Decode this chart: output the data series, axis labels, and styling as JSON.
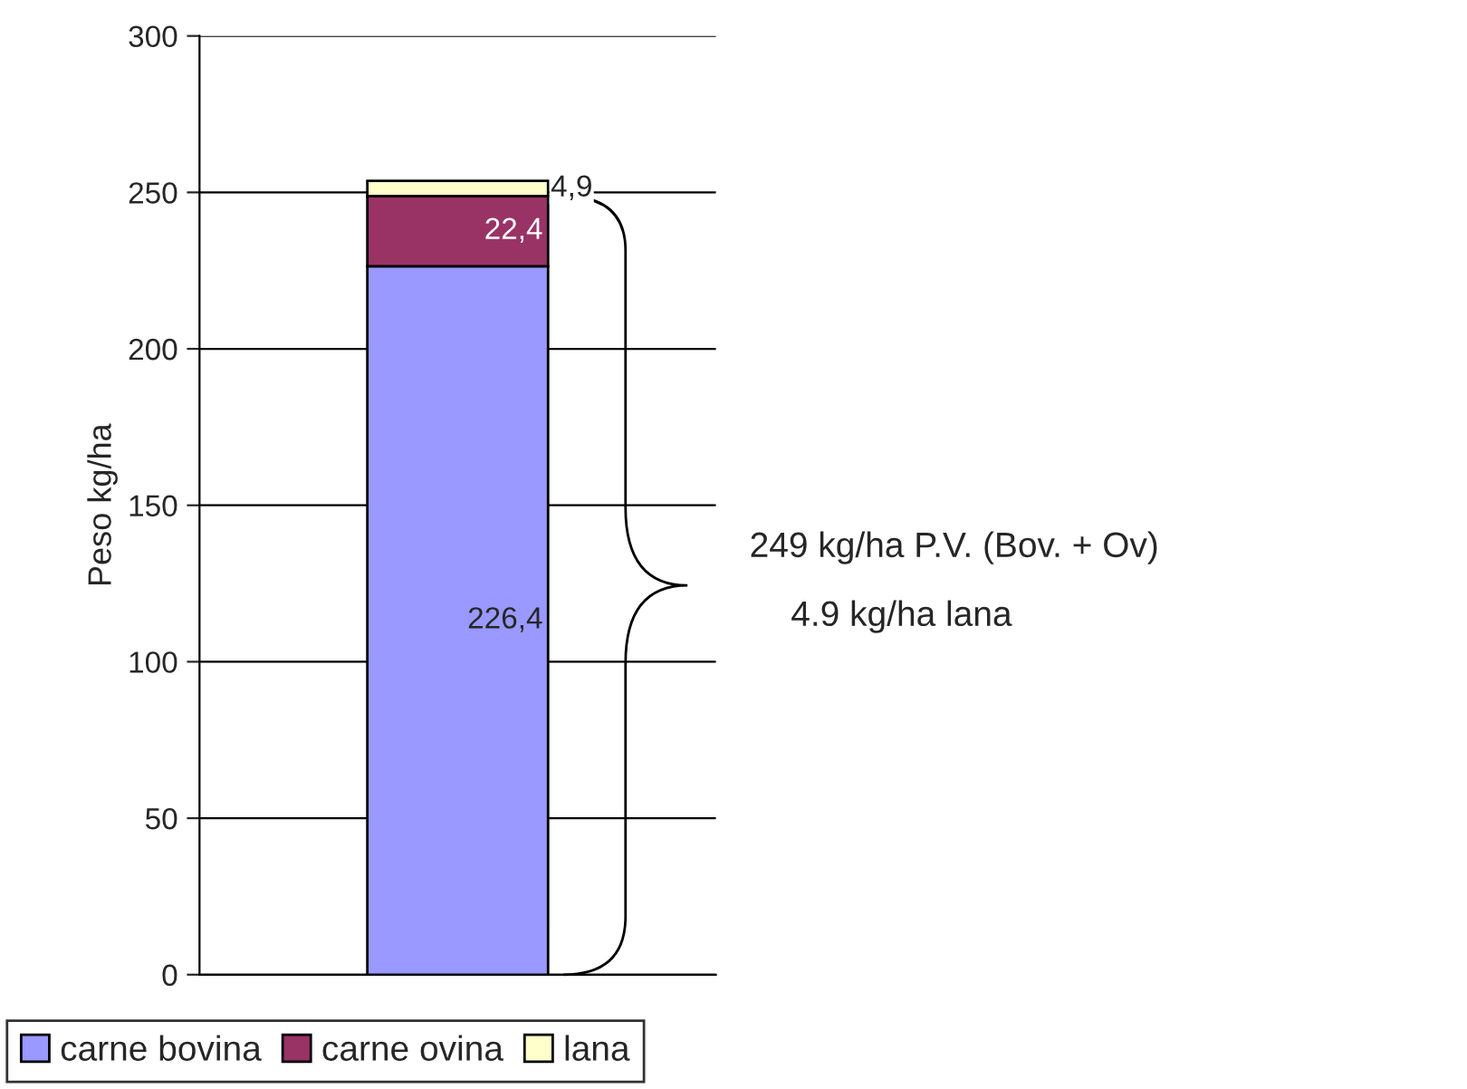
{
  "chart_data": {
    "type": "bar",
    "stacked": true,
    "ylabel": "Peso kg/ha",
    "categories": [
      null
    ],
    "series": [
      {
        "name": "carne bovina",
        "color": "#9999ff",
        "values": [
          226.4
        ],
        "value_labels": [
          "226,4"
        ]
      },
      {
        "name": "carne ovina",
        "color": "#993366",
        "values": [
          22.4
        ],
        "value_labels": [
          "22,4"
        ]
      },
      {
        "name": "lana",
        "color": "#ffffcc",
        "values": [
          4.9
        ],
        "value_labels": [
          "4,9"
        ]
      }
    ],
    "ylim": [
      0,
      300
    ],
    "yticks": [
      0,
      50,
      100,
      150,
      200,
      250,
      300
    ],
    "grid": "y",
    "legend": "bottom",
    "annotations": [
      "249 kg/ha P.V. (Bov. + Ov)",
      "4.9 kg/ha lana"
    ]
  }
}
